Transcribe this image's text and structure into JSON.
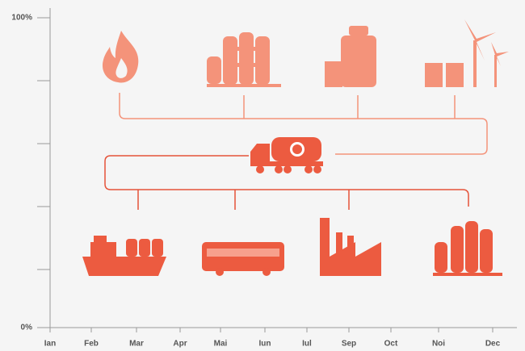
{
  "y_axis": {
    "labels": [
      "100%",
      "0%"
    ]
  },
  "x_axis": {
    "labels": [
      "Ian",
      "Feb",
      "Mar",
      "Apr",
      "Mai",
      "Iun",
      "Iul",
      "Sep",
      "Oct",
      "Noi",
      "Dec"
    ]
  }
}
